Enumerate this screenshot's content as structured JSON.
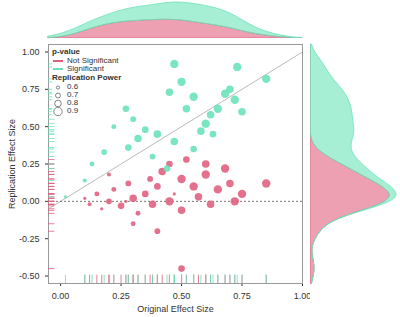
{
  "chart_data": {
    "type": "scatter",
    "xlabel": "Original Effect Size",
    "ylabel": "Replication Effect Size",
    "xlim": [
      -0.05,
      1.0
    ],
    "ylim": [
      -0.55,
      1.05
    ],
    "xticks": [
      {
        "value": 0,
        "label": "0.00"
      },
      {
        "value": 0.25,
        "label": "0.25"
      },
      {
        "value": 0.5,
        "label": "0.50"
      },
      {
        "value": 0.75,
        "label": "0.75"
      },
      {
        "value": 1,
        "label": "1.00"
      }
    ],
    "yticks": [
      {
        "value": -0.5,
        "label": "-0.50"
      },
      {
        "value": -0.25,
        "label": "-0.25"
      },
      {
        "value": 0,
        "label": "0.00"
      },
      {
        "value": 0.25,
        "label": "0.25"
      },
      {
        "value": 0.5,
        "label": "0.50"
      },
      {
        "value": 0.75,
        "label": "0.75"
      },
      {
        "value": 1,
        "label": "1.00"
      }
    ],
    "grid": false,
    "legend": "top-left",
    "legend_title": "p-value",
    "size_legend_title": "Replication Power",
    "size_legend": [
      0.6,
      0.7,
      0.8,
      0.9
    ],
    "series": [
      {
        "name": "Not Significant",
        "color": "#e0607f",
        "points": [
          {
            "x": 0.1,
            "y": 0.02,
            "power": 0.6
          },
          {
            "x": 0.12,
            "y": -0.02,
            "power": 0.65
          },
          {
            "x": 0.15,
            "y": 0.05,
            "power": 0.7
          },
          {
            "x": 0.17,
            "y": -0.05,
            "power": 0.6
          },
          {
            "x": 0.2,
            "y": 0.0,
            "power": 0.75
          },
          {
            "x": 0.22,
            "y": 0.08,
            "power": 0.7
          },
          {
            "x": 0.25,
            "y": -0.03,
            "power": 0.8
          },
          {
            "x": 0.28,
            "y": 0.12,
            "power": 0.75
          },
          {
            "x": 0.3,
            "y": 0.02,
            "power": 0.85
          },
          {
            "x": 0.32,
            "y": -0.08,
            "power": 0.7
          },
          {
            "x": 0.35,
            "y": 0.05,
            "power": 0.8
          },
          {
            "x": 0.37,
            "y": 0.15,
            "power": 0.75
          },
          {
            "x": 0.38,
            "y": -0.02,
            "power": 0.85
          },
          {
            "x": 0.4,
            "y": 0.1,
            "power": 0.8
          },
          {
            "x": 0.42,
            "y": 0.2,
            "power": 0.85
          },
          {
            "x": 0.45,
            "y": 0.0,
            "power": 0.9
          },
          {
            "x": 0.47,
            "y": 0.05,
            "power": 0.6
          },
          {
            "x": 0.5,
            "y": -0.06,
            "power": 0.85
          },
          {
            "x": 0.5,
            "y": 0.15,
            "power": 0.9
          },
          {
            "x": 0.52,
            "y": 0.28,
            "power": 0.8
          },
          {
            "x": 0.55,
            "y": 0.1,
            "power": 0.9
          },
          {
            "x": 0.57,
            "y": 0.03,
            "power": 0.85
          },
          {
            "x": 0.6,
            "y": 0.18,
            "power": 0.9
          },
          {
            "x": 0.62,
            "y": -0.02,
            "power": 0.85
          },
          {
            "x": 0.65,
            "y": 0.08,
            "power": 0.9
          },
          {
            "x": 0.68,
            "y": 0.22,
            "power": 0.9
          },
          {
            "x": 0.7,
            "y": 0.12,
            "power": 0.85
          },
          {
            "x": 0.72,
            "y": 0.0,
            "power": 0.9
          },
          {
            "x": 0.75,
            "y": 0.05,
            "power": 0.9
          },
          {
            "x": 0.85,
            "y": 0.12,
            "power": 0.9
          },
          {
            "x": 0.5,
            "y": -0.45,
            "power": 0.8
          },
          {
            "x": 0.4,
            "y": -0.2,
            "power": 0.75
          },
          {
            "x": 0.3,
            "y": -0.15,
            "power": 0.7
          },
          {
            "x": 0.2,
            "y": 0.18,
            "power": 0.65
          },
          {
            "x": 0.27,
            "y": 0.0,
            "power": 0.6
          },
          {
            "x": 0.6,
            "y": 0.25,
            "power": 0.85
          },
          {
            "x": 0.45,
            "y": 0.25,
            "power": 0.8
          }
        ]
      },
      {
        "name": "Significant",
        "color": "#6ae3b8",
        "points": [
          {
            "x": 0.02,
            "y": 0.03,
            "power": 0.6
          },
          {
            "x": 0.1,
            "y": 0.14,
            "power": 0.65
          },
          {
            "x": 0.13,
            "y": 0.25,
            "power": 0.7
          },
          {
            "x": 0.18,
            "y": 0.33,
            "power": 0.75
          },
          {
            "x": 0.22,
            "y": 0.5,
            "power": 0.7
          },
          {
            "x": 0.27,
            "y": 0.62,
            "power": 0.8
          },
          {
            "x": 0.3,
            "y": 0.55,
            "power": 0.75
          },
          {
            "x": 0.28,
            "y": 0.36,
            "power": 0.8
          },
          {
            "x": 0.32,
            "y": 0.42,
            "power": 0.85
          },
          {
            "x": 0.35,
            "y": 0.48,
            "power": 0.8
          },
          {
            "x": 0.38,
            "y": 0.3,
            "power": 0.75
          },
          {
            "x": 0.4,
            "y": 0.45,
            "power": 0.85
          },
          {
            "x": 0.44,
            "y": 0.22,
            "power": 0.8
          },
          {
            "x": 0.47,
            "y": 0.4,
            "power": 0.85
          },
          {
            "x": 0.47,
            "y": 0.92,
            "power": 0.9
          },
          {
            "x": 0.45,
            "y": 0.73,
            "power": 0.85
          },
          {
            "x": 0.5,
            "y": 0.8,
            "power": 0.9
          },
          {
            "x": 0.52,
            "y": 0.62,
            "power": 0.85
          },
          {
            "x": 0.55,
            "y": 0.7,
            "power": 0.9
          },
          {
            "x": 0.55,
            "y": 0.35,
            "power": 0.8
          },
          {
            "x": 0.58,
            "y": 0.47,
            "power": 0.85
          },
          {
            "x": 0.6,
            "y": 0.52,
            "power": 0.9
          },
          {
            "x": 0.62,
            "y": 0.58,
            "power": 0.85
          },
          {
            "x": 0.63,
            "y": 0.45,
            "power": 0.8
          },
          {
            "x": 0.65,
            "y": 0.62,
            "power": 0.9
          },
          {
            "x": 0.68,
            "y": 0.72,
            "power": 0.9
          },
          {
            "x": 0.7,
            "y": 0.75,
            "power": 0.85
          },
          {
            "x": 0.72,
            "y": 0.68,
            "power": 0.9
          },
          {
            "x": 0.73,
            "y": 0.9,
            "power": 0.9
          },
          {
            "x": 0.75,
            "y": 0.6,
            "power": 0.85
          },
          {
            "x": 0.85,
            "y": 0.82,
            "power": 0.9
          }
        ]
      }
    ]
  }
}
